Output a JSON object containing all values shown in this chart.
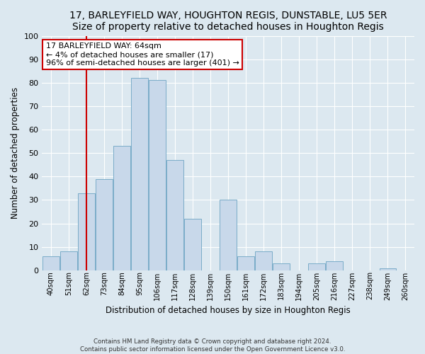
{
  "title": "17, BARLEYFIELD WAY, HOUGHTON REGIS, DUNSTABLE, LU5 5ER",
  "subtitle": "Size of property relative to detached houses in Houghton Regis",
  "xlabel": "Distribution of detached houses by size in Houghton Regis",
  "ylabel": "Number of detached properties",
  "bar_labels": [
    "40sqm",
    "51sqm",
    "62sqm",
    "73sqm",
    "84sqm",
    "95sqm",
    "106sqm",
    "117sqm",
    "128sqm",
    "139sqm",
    "150sqm",
    "161sqm",
    "172sqm",
    "183sqm",
    "194sqm",
    "205sqm",
    "216sqm",
    "227sqm",
    "238sqm",
    "249sqm",
    "260sqm"
  ],
  "bar_values": [
    6,
    8,
    33,
    39,
    53,
    82,
    81,
    47,
    22,
    0,
    30,
    6,
    8,
    3,
    0,
    3,
    4,
    0,
    0,
    1,
    0
  ],
  "bar_color": "#c8d8ea",
  "bar_edge_color": "#7aacc8",
  "vline_x_idx": 2,
  "vline_color": "#cc0000",
  "ylim": [
    0,
    100
  ],
  "yticks": [
    0,
    10,
    20,
    30,
    40,
    50,
    60,
    70,
    80,
    90,
    100
  ],
  "annotation_text": "17 BARLEYFIELD WAY: 64sqm\n← 4% of detached houses are smaller (17)\n96% of semi-detached houses are larger (401) →",
  "annotation_box_color": "#ffffff",
  "annotation_box_edge": "#cc0000",
  "footer_line1": "Contains HM Land Registry data © Crown copyright and database right 2024.",
  "footer_line2": "Contains public sector information licensed under the Open Government Licence v3.0.",
  "background_color": "#dce8f0",
  "plot_bg_color": "#dce8f0",
  "grid_color": "#ffffff",
  "title_fontsize": 10,
  "subtitle_fontsize": 9.5
}
